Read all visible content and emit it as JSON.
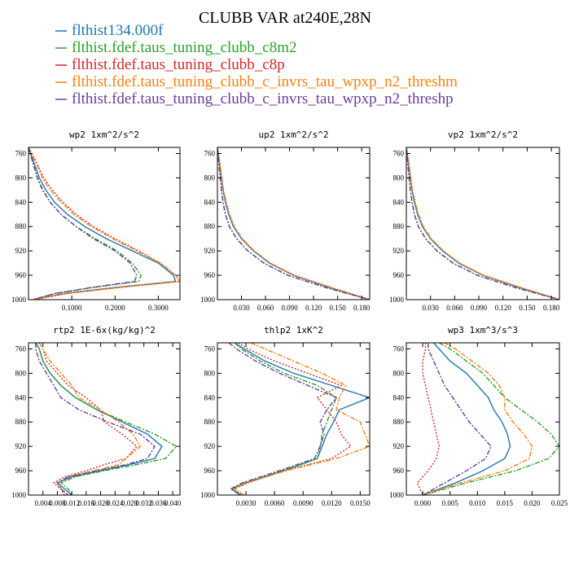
{
  "figure": {
    "title": "CLUBB VAR at240E,28N",
    "legend": [
      {
        "label": "flthist134.000f",
        "color": "#1f77b4"
      },
      {
        "label": "flthist.fdef.taus_tuning_clubb_c8m2",
        "color": "#2ca02c"
      },
      {
        "label": "flthist.fdef.taus_tuning_clubb_c8p",
        "color": "#d62728"
      },
      {
        "label": "flthist.fdef.taus_tuning_clubb_c_invrs_tau_wpxp_n2_threshm",
        "color": "#ff7f0e"
      },
      {
        "label": "flthist.fdef.taus_tuning_clubb_c_invrs_tau_wpxp_n2_threshp",
        "color": "#6a3d9a"
      }
    ]
  },
  "chart_data": [
    {
      "type": "line",
      "title": "wp2  1xm^2/s^2",
      "y_ticks": [
        760,
        800,
        840,
        880,
        920,
        960,
        1000
      ],
      "y_tick_labels": [
        "760",
        "800",
        "840",
        "880",
        "920",
        "960",
        "1000"
      ],
      "ylim": [
        1000,
        750
      ],
      "x_ticks": [
        0.1,
        0.2,
        0.3
      ],
      "x_tick_labels": [
        "0.1000",
        "0.2000",
        "0.3000"
      ],
      "xlim": [
        0,
        0.35
      ],
      "y": [
        750,
        760,
        780,
        800,
        820,
        840,
        860,
        880,
        900,
        920,
        940,
        960,
        970,
        980,
        990,
        1000
      ],
      "series": [
        {
          "values": [
            0.0,
            0.005,
            0.015,
            0.025,
            0.04,
            0.06,
            0.09,
            0.13,
            0.18,
            0.24,
            0.3,
            0.335,
            0.34,
            0.2,
            0.08,
            0.01
          ]
        },
        {
          "values": [
            0.0,
            0.004,
            0.012,
            0.02,
            0.032,
            0.05,
            0.075,
            0.11,
            0.155,
            0.205,
            0.24,
            0.26,
            0.255,
            0.15,
            0.06,
            0.01
          ]
        },
        {
          "values": [
            0.0,
            0.008,
            0.022,
            0.035,
            0.055,
            0.08,
            0.11,
            0.15,
            0.2,
            0.255,
            0.305,
            0.34,
            0.35,
            0.21,
            0.09,
            0.01
          ]
        },
        {
          "values": [
            0.0,
            0.007,
            0.02,
            0.032,
            0.05,
            0.075,
            0.105,
            0.145,
            0.195,
            0.25,
            0.305,
            0.34,
            0.35,
            0.21,
            0.085,
            0.01
          ]
        },
        {
          "values": [
            0.0,
            0.004,
            0.012,
            0.021,
            0.033,
            0.05,
            0.075,
            0.11,
            0.15,
            0.2,
            0.235,
            0.25,
            0.245,
            0.145,
            0.06,
            0.01
          ]
        }
      ]
    },
    {
      "type": "line",
      "title": "up2  1xm^2/s^2",
      "y_ticks": [
        760,
        800,
        840,
        880,
        920,
        960,
        1000
      ],
      "y_tick_labels": [
        "760",
        "800",
        "840",
        "880",
        "920",
        "960",
        "1000"
      ],
      "ylim": [
        1000,
        750
      ],
      "x_ticks": [
        0.03,
        0.06,
        0.09,
        0.12,
        0.15,
        0.18
      ],
      "x_tick_labels": [
        "0.030",
        "0.060",
        "0.090",
        "0.120",
        "0.150",
        "0.180"
      ],
      "xlim": [
        0,
        0.19
      ],
      "y": [
        750,
        760,
        780,
        800,
        820,
        840,
        860,
        880,
        900,
        920,
        940,
        960,
        980,
        1000
      ],
      "series": [
        {
          "values": [
            0.0,
            0.001,
            0.003,
            0.005,
            0.007,
            0.01,
            0.014,
            0.02,
            0.03,
            0.045,
            0.065,
            0.095,
            0.14,
            0.19
          ]
        },
        {
          "values": [
            0.0,
            0.0008,
            0.002,
            0.0035,
            0.005,
            0.007,
            0.01,
            0.015,
            0.024,
            0.038,
            0.058,
            0.088,
            0.135,
            0.19
          ]
        },
        {
          "values": [
            0.0,
            0.0012,
            0.0035,
            0.0055,
            0.0075,
            0.011,
            0.015,
            0.021,
            0.031,
            0.046,
            0.066,
            0.096,
            0.142,
            0.19
          ]
        },
        {
          "values": [
            0.0,
            0.0012,
            0.0035,
            0.0055,
            0.0075,
            0.011,
            0.015,
            0.021,
            0.031,
            0.046,
            0.066,
            0.096,
            0.142,
            0.19
          ]
        },
        {
          "values": [
            0.0,
            0.0008,
            0.002,
            0.0035,
            0.005,
            0.007,
            0.01,
            0.015,
            0.024,
            0.038,
            0.058,
            0.088,
            0.135,
            0.19
          ]
        }
      ]
    },
    {
      "type": "line",
      "title": "vp2  1xm^2/s^2",
      "y_ticks": [
        760,
        800,
        840,
        880,
        920,
        960,
        1000
      ],
      "y_tick_labels": [
        "760",
        "800",
        "840",
        "880",
        "920",
        "960",
        "1000"
      ],
      "ylim": [
        1000,
        750
      ],
      "x_ticks": [
        0.03,
        0.06,
        0.09,
        0.12,
        0.15,
        0.18
      ],
      "x_tick_labels": [
        "0.030",
        "0.060",
        "0.090",
        "0.120",
        "0.150",
        "0.180"
      ],
      "xlim": [
        0,
        0.19
      ],
      "y": [
        750,
        760,
        780,
        800,
        820,
        840,
        860,
        880,
        900,
        920,
        940,
        960,
        980,
        1000
      ],
      "series": [
        {
          "values": [
            0.0,
            0.001,
            0.003,
            0.005,
            0.007,
            0.01,
            0.014,
            0.02,
            0.03,
            0.045,
            0.065,
            0.095,
            0.14,
            0.19
          ]
        },
        {
          "values": [
            0.0,
            0.0008,
            0.002,
            0.0035,
            0.005,
            0.007,
            0.01,
            0.015,
            0.024,
            0.038,
            0.058,
            0.088,
            0.135,
            0.19
          ]
        },
        {
          "values": [
            0.0,
            0.0012,
            0.0035,
            0.0055,
            0.0075,
            0.011,
            0.015,
            0.021,
            0.031,
            0.046,
            0.066,
            0.096,
            0.142,
            0.19
          ]
        },
        {
          "values": [
            0.0,
            0.0012,
            0.0035,
            0.0055,
            0.0075,
            0.011,
            0.015,
            0.021,
            0.031,
            0.046,
            0.066,
            0.096,
            0.142,
            0.19
          ]
        },
        {
          "values": [
            0.0,
            0.0008,
            0.002,
            0.0035,
            0.005,
            0.007,
            0.01,
            0.015,
            0.024,
            0.038,
            0.058,
            0.088,
            0.135,
            0.19
          ]
        }
      ]
    },
    {
      "type": "line",
      "title": "rtp2  1E-6x(kg/kg)^2",
      "y_ticks": [
        760,
        800,
        840,
        880,
        920,
        960,
        1000
      ],
      "y_tick_labels": [
        "760",
        "800",
        "840",
        "880",
        "920",
        "960",
        "1000"
      ],
      "ylim": [
        1000,
        750
      ],
      "x_ticks": [
        0.004,
        0.008,
        0.012,
        0.016,
        0.02,
        0.024,
        0.028,
        0.032,
        0.036,
        0.04
      ],
      "x_tick_labels": [
        "0.004",
        "0.008",
        "0.012",
        "0.016",
        "0.020",
        "0.024",
        "0.028",
        "0.032",
        "0.036",
        "0.040"
      ],
      "xlim": [
        0,
        0.042
      ],
      "y": [
        750,
        760,
        780,
        800,
        820,
        840,
        860,
        880,
        900,
        920,
        940,
        950,
        960,
        970,
        980,
        990,
        1000
      ],
      "series": [
        {
          "values": [
            0.002,
            0.003,
            0.004,
            0.006,
            0.009,
            0.013,
            0.019,
            0.026,
            0.033,
            0.037,
            0.035,
            0.028,
            0.02,
            0.012,
            0.008,
            0.01,
            0.012
          ]
        },
        {
          "values": [
            0.002,
            0.003,
            0.004,
            0.006,
            0.009,
            0.013,
            0.019,
            0.027,
            0.035,
            0.041,
            0.038,
            0.03,
            0.021,
            0.013,
            0.009,
            0.011,
            0.012
          ]
        },
        {
          "values": [
            0.003,
            0.004,
            0.005,
            0.008,
            0.011,
            0.016,
            0.02,
            0.021,
            0.026,
            0.03,
            0.027,
            0.021,
            0.016,
            0.01,
            0.007,
            0.009,
            0.01
          ]
        },
        {
          "values": [
            0.003,
            0.004,
            0.006,
            0.009,
            0.012,
            0.014,
            0.02,
            0.025,
            0.029,
            0.031,
            0.027,
            0.025,
            0.018,
            0.011,
            0.008,
            0.009,
            0.011
          ]
        },
        {
          "values": [
            0.002,
            0.002,
            0.003,
            0.005,
            0.007,
            0.009,
            0.014,
            0.022,
            0.031,
            0.035,
            0.033,
            0.027,
            0.019,
            0.011,
            0.008,
            0.009,
            0.011
          ]
        }
      ]
    },
    {
      "type": "line",
      "title": "thlp2  1xK^2",
      "y_ticks": [
        760,
        800,
        840,
        880,
        920,
        960,
        1000
      ],
      "y_tick_labels": [
        "760",
        "800",
        "840",
        "880",
        "920",
        "960",
        "1000"
      ],
      "ylim": [
        1000,
        750
      ],
      "x_ticks": [
        0.003,
        0.006,
        0.009,
        0.012,
        0.015
      ],
      "x_tick_labels": [
        "0.0030",
        "0.0060",
        "0.0090",
        "0.0120",
        "0.0150"
      ],
      "xlim": [
        0,
        0.016
      ],
      "y": [
        750,
        760,
        780,
        800,
        820,
        840,
        860,
        880,
        900,
        920,
        940,
        960,
        980,
        990,
        1000
      ],
      "series": [
        {
          "values": [
            0.0018,
            0.0028,
            0.005,
            0.008,
            0.012,
            0.016,
            0.0128,
            0.0122,
            0.0115,
            0.011,
            0.0105,
            0.007,
            0.003,
            0.0015,
            0.0025
          ]
        },
        {
          "values": [
            0.0018,
            0.0025,
            0.0045,
            0.007,
            0.0105,
            0.0125,
            0.012,
            0.0115,
            0.011,
            0.0108,
            0.0105,
            0.0068,
            0.0028,
            0.0015,
            0.0025
          ]
        },
        {
          "values": [
            0.0022,
            0.0032,
            0.006,
            0.0095,
            0.013,
            0.0105,
            0.0115,
            0.0125,
            0.013,
            0.014,
            0.012,
            0.007,
            0.0032,
            0.0018,
            0.0028
          ]
        },
        {
          "values": [
            0.0035,
            0.005,
            0.008,
            0.011,
            0.0135,
            0.0128,
            0.0125,
            0.015,
            0.0155,
            0.016,
            0.0125,
            0.0072,
            0.003,
            0.0018,
            0.0028
          ]
        },
        {
          "values": [
            0.0012,
            0.002,
            0.004,
            0.0065,
            0.0095,
            0.0125,
            0.0115,
            0.0108,
            0.0112,
            0.0108,
            0.0102,
            0.0065,
            0.0026,
            0.0014,
            0.0024
          ]
        }
      ]
    },
    {
      "type": "line",
      "title": "wp3  1xm^3/s^3",
      "y_ticks": [
        760,
        800,
        840,
        880,
        920,
        960,
        1000
      ],
      "y_tick_labels": [
        "760",
        "800",
        "840",
        "880",
        "920",
        "960",
        "1000"
      ],
      "ylim": [
        1000,
        750
      ],
      "x_ticks": [
        0,
        0.005,
        0.01,
        0.015,
        0.02,
        0.025
      ],
      "x_tick_labels": [
        "0.000",
        "0.005",
        "0.010",
        "0.015",
        "0.020",
        "0.025"
      ],
      "xlim": [
        -0.003,
        0.025
      ],
      "y": [
        750,
        760,
        780,
        800,
        820,
        840,
        860,
        880,
        900,
        920,
        940,
        960,
        980,
        1000
      ],
      "series": [
        {
          "values": [
            0.002,
            0.003,
            0.005,
            0.008,
            0.01,
            0.012,
            0.013,
            0.0145,
            0.0155,
            0.016,
            0.015,
            0.011,
            0.006,
            0.0
          ]
        },
        {
          "values": [
            0.003,
            0.005,
            0.008,
            0.011,
            0.013,
            0.015,
            0.018,
            0.021,
            0.0235,
            0.025,
            0.023,
            0.017,
            0.008,
            0.0
          ]
        },
        {
          "values": [
            0.0005,
            0.0005,
            0.0,
            0.0,
            0.0005,
            0.001,
            0.0015,
            0.002,
            0.0025,
            0.003,
            0.0025,
            0.001,
            -0.001,
            0.0
          ]
        },
        {
          "values": [
            0.004,
            0.006,
            0.009,
            0.012,
            0.014,
            0.015,
            0.015,
            0.0165,
            0.0185,
            0.02,
            0.0195,
            0.015,
            0.007,
            0.0
          ]
        },
        {
          "values": [
            0.001,
            0.001,
            0.002,
            0.003,
            0.004,
            0.0055,
            0.007,
            0.0085,
            0.0105,
            0.0125,
            0.0115,
            0.008,
            0.004,
            0.0
          ]
        }
      ]
    }
  ]
}
